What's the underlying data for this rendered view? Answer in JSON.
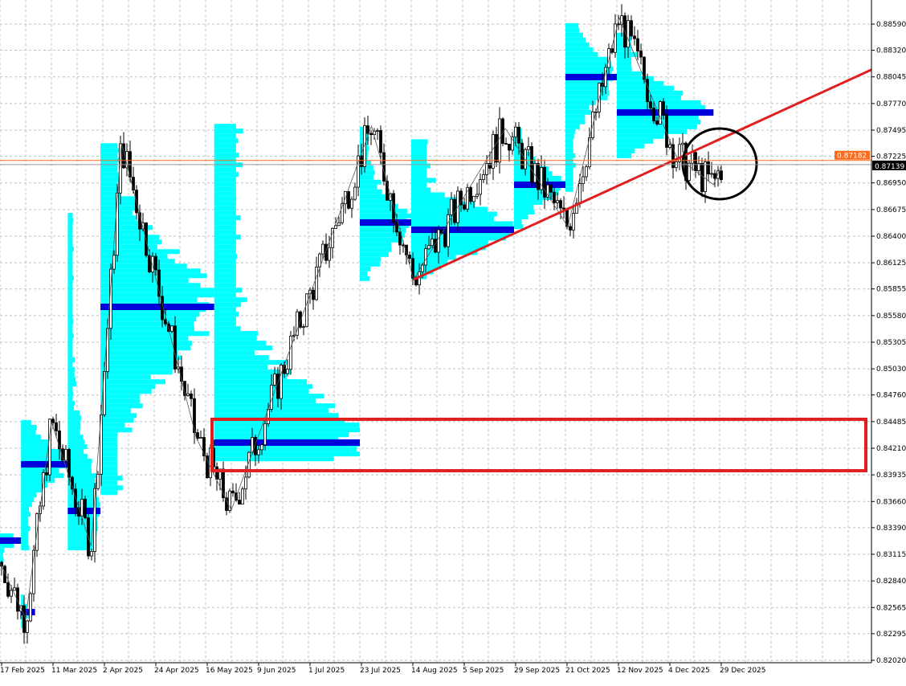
{
  "chart_data": {
    "type": "candlestick",
    "title": "",
    "colors": {
      "background": "#ffffff",
      "grid": "#c0c0c0",
      "profile": "#00ffff",
      "poc": "#0000dd",
      "candle": "#000000",
      "trendline": "#e02020",
      "zone": "#e02020",
      "circle": "#000000",
      "ask_line": "#ff6a1a",
      "bid_label_bg": "#000000"
    },
    "y_ticks": [
      "0.88590",
      "0.88320",
      "0.88045",
      "0.87770",
      "0.87495",
      "0.87225",
      "0.86950",
      "0.86675",
      "0.86400",
      "0.86125",
      "0.85855",
      "0.85580",
      "0.85305",
      "0.85030",
      "0.84760",
      "0.84485",
      "0.84210",
      "0.83935",
      "0.83660",
      "0.83390",
      "0.83115",
      "0.82840",
      "0.82565",
      "0.82295",
      "0.82020"
    ],
    "ylim": [
      0.8202,
      0.8859
    ],
    "x_ticks": [
      "17 Feb 2025",
      "11 Mar 2025",
      "2 Apr 2025",
      "24 Apr 2025",
      "16 May 2025",
      "9 Jun 2025",
      "1 Jul 2025",
      "23 Jul 2025",
      "14 Aug 2025",
      "5 Sep 2025",
      "29 Sep 2025",
      "21 Oct 2025",
      "12 Nov 2025",
      "4 Dec 2025",
      "29 Dec 2025"
    ],
    "x_tick_dates": [
      "2025-02-17",
      "2025-03-11",
      "2025-04-02",
      "2025-04-24",
      "2025-05-16",
      "2025-06-09",
      "2025-07-01",
      "2025-07-23",
      "2025-08-14",
      "2025-09-05",
      "2025-09-29",
      "2025-10-21",
      "2025-11-12",
      "2025-12-04",
      "2025-12-29"
    ],
    "zigzag_pivots": [
      {
        "date": "2025-02-17",
        "price": 0.83032
      },
      {
        "date": "2025-02-28",
        "price": 0.82451
      },
      {
        "date": "2025-03-11",
        "price": 0.84484
      },
      {
        "date": "2025-03-28",
        "price": 0.83198
      },
      {
        "date": "2025-04-10",
        "price": 0.87362
      },
      {
        "date": "2025-05-12",
        "price": 0.84318
      },
      {
        "date": "2025-05-28",
        "price": 0.83571
      },
      {
        "date": "2025-07-28",
        "price": 0.87537
      },
      {
        "date": "2025-08-15",
        "price": 0.85952
      },
      {
        "date": "2025-09-25",
        "price": 0.87512
      },
      {
        "date": "2025-10-22",
        "price": 0.865
      },
      {
        "date": "2025-11-13",
        "price": 0.88656
      },
      {
        "date": "2025-12-08",
        "price": 0.87221
      },
      {
        "date": "2025-12-26",
        "price": 0.86931
      },
      {
        "date": "2025-12-30",
        "price": 0.87139
      }
    ],
    "volume_profiles": [
      {
        "from": "2025-02-17",
        "to": "2025-02-26",
        "low": 0.8305,
        "high": 0.8333,
        "poc": 0.83256
      },
      {
        "from": "2025-02-26",
        "to": "2025-03-04",
        "low": 0.824,
        "high": 0.827,
        "poc": 0.82518
      },
      {
        "from": "2025-02-26",
        "to": "2025-03-18",
        "low": 0.8318,
        "high": 0.845,
        "poc": 0.84044
      },
      {
        "from": "2025-03-18",
        "to": "2025-04-01",
        "low": 0.8317,
        "high": 0.8664,
        "poc": 0.83563
      },
      {
        "from": "2025-04-01",
        "to": "2025-05-20",
        "low": 0.8375,
        "high": 0.8736,
        "poc": 0.8567
      },
      {
        "from": "2025-05-20",
        "to": "2025-07-23",
        "low": 0.8408,
        "high": 0.8756,
        "poc": 0.84268
      },
      {
        "from": "2025-07-23",
        "to": "2025-08-14",
        "low": 0.8595,
        "high": 0.8753,
        "poc": 0.86541
      },
      {
        "from": "2025-08-14",
        "to": "2025-09-29",
        "low": 0.86,
        "high": 0.874,
        "poc": 0.86466
      },
      {
        "from": "2025-09-29",
        "to": "2025-10-21",
        "low": 0.865,
        "high": 0.8752,
        "poc": 0.86931
      },
      {
        "from": "2025-10-21",
        "to": "2025-11-12",
        "low": 0.869,
        "high": 0.886,
        "poc": 0.88043
      },
      {
        "from": "2025-11-12",
        "to": "2025-12-26",
        "low": 0.8723,
        "high": 0.885,
        "poc": 0.87677
      }
    ],
    "trendline": [
      {
        "date": "2025-08-15",
        "price": 0.85952
      },
      {
        "date": "2025-10-22",
        "price": 0.86682
      }
    ],
    "support_zone": {
      "from": "2025-05-19",
      "low": 0.83978,
      "high": 0.84509
    },
    "circle_annotation": {
      "date": "2025-12-29",
      "price": 0.87147
    },
    "ask_price": "0.87182",
    "bid_price": "0.87139"
  }
}
